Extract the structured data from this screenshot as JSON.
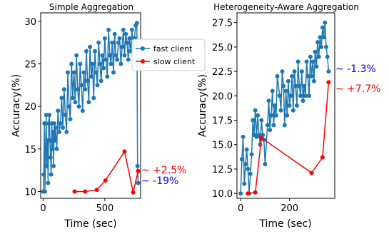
{
  "chart_data": [
    {
      "type": "line",
      "title": "Simple Aggregation",
      "xlabel": "Time (sec)",
      "ylabel": "Accuracy(%)",
      "xlim": [
        -20,
        790
      ],
      "ylim": [
        9.2,
        31.0
      ],
      "xticks": [
        0,
        500
      ],
      "yticks": [
        10,
        15,
        20,
        25,
        30
      ],
      "legend": {
        "placement": "right",
        "entries": [
          "fast client",
          "slow client"
        ]
      },
      "series": [
        {
          "name": "fast client",
          "color": "#1f77b4",
          "x": [
            0,
            5,
            10,
            15,
            20,
            25,
            30,
            35,
            40,
            45,
            50,
            55,
            60,
            65,
            70,
            75,
            80,
            85,
            90,
            95,
            100,
            110,
            120,
            130,
            140,
            150,
            160,
            170,
            180,
            190,
            200,
            210,
            220,
            230,
            240,
            250,
            260,
            270,
            280,
            290,
            300,
            310,
            320,
            330,
            340,
            350,
            360,
            370,
            380,
            390,
            400,
            410,
            420,
            430,
            440,
            450,
            460,
            470,
            480,
            490,
            500,
            510,
            520,
            530,
            540,
            550,
            560,
            570,
            580,
            590,
            600,
            610,
            620,
            630,
            640,
            650,
            660,
            670,
            680,
            690,
            700,
            710,
            720,
            730,
            740,
            750,
            760,
            765,
            770
          ],
          "y": [
            10.0,
            12.0,
            18.0,
            10.0,
            15.0,
            19.0,
            13.0,
            16.0,
            11.0,
            18.0,
            19.0,
            16.0,
            14.0,
            12.0,
            18.0,
            15.0,
            17.0,
            13.0,
            18.0,
            16.0,
            17.5,
            15.0,
            19.5,
            17.0,
            18.0,
            21.0,
            17.5,
            22.0,
            19.0,
            17.0,
            24.0,
            20.0,
            18.5,
            25.0,
            21.0,
            24.0,
            20.5,
            26.0,
            22.0,
            20.0,
            25.0,
            22.5,
            19.5,
            24.0,
            22.0,
            26.5,
            23.0,
            20.5,
            27.0,
            23.5,
            25.0,
            21.0,
            26.5,
            24.0,
            22.5,
            27.5,
            25.0,
            23.0,
            26.0,
            24.5,
            28.0,
            25.5,
            23.5,
            29.0,
            26.0,
            25.0,
            27.5,
            24.0,
            28.5,
            26.0,
            25.5,
            27.5,
            28.0,
            25.0,
            27.0,
            29.0,
            26.0,
            28.5,
            27.5,
            25.5,
            28.0,
            26.5,
            29.0,
            27.0,
            28.0,
            29.5,
            29.8,
            13.0,
            11.0
          ]
        },
        {
          "name": "slow client",
          "color": "#ff0000",
          "x": [
            255,
            340,
            435,
            505,
            660,
            730,
            770
          ],
          "y": [
            10.0,
            10.0,
            10.2,
            11.3,
            14.7,
            9.9,
            12.4
          ]
        }
      ],
      "annotations": [
        {
          "text": "~ +2.5%",
          "color": "#ff0000"
        },
        {
          "text": "~ -19%",
          "color": "#0000ff"
        }
      ]
    },
    {
      "type": "line",
      "title": "Heterogeneity-Aware Aggregation",
      "xlabel": "Time (sec)",
      "ylabel": "Accuracy(%)",
      "xlim": [
        -15,
        385
      ],
      "ylim": [
        9.5,
        28.5
      ],
      "xticks": [
        0,
        200
      ],
      "yticks": [
        10.0,
        12.5,
        15.0,
        17.5,
        20.0,
        22.5,
        25.0,
        27.5
      ],
      "series": [
        {
          "name": "fast client",
          "color": "#1f77b4",
          "x": [
            0,
            5,
            10,
            15,
            20,
            25,
            30,
            35,
            40,
            45,
            50,
            55,
            60,
            65,
            70,
            75,
            80,
            85,
            90,
            95,
            100,
            110,
            115,
            120,
            125,
            130,
            135,
            140,
            145,
            150,
            160,
            165,
            170,
            175,
            180,
            185,
            190,
            195,
            200,
            205,
            210,
            215,
            220,
            225,
            230,
            235,
            240,
            245,
            250,
            255,
            260,
            265,
            270,
            275,
            280,
            285,
            290,
            295,
            300,
            305,
            310,
            315,
            320,
            325,
            330,
            335,
            340,
            345,
            350,
            355,
            360
          ],
          "y": [
            10.0,
            13.5,
            15.8,
            11.0,
            13.0,
            14.5,
            12.5,
            10.0,
            12.0,
            14.0,
            17.5,
            16.0,
            18.5,
            15.8,
            18.0,
            16.0,
            15.0,
            17.5,
            16.0,
            15.5,
            13.0,
            17.0,
            19.5,
            16.5,
            18.0,
            20.5,
            17.0,
            19.0,
            18.0,
            22.0,
            20.0,
            18.5,
            22.5,
            21.0,
            17.0,
            20.5,
            18.0,
            21.5,
            19.0,
            20.0,
            22.0,
            18.5,
            22.5,
            21.0,
            19.0,
            23.5,
            21.0,
            20.0,
            22.5,
            19.5,
            21.0,
            20.0,
            23.5,
            22.0,
            20.0,
            24.0,
            22.0,
            23.5,
            21.5,
            24.5,
            23.0,
            25.5,
            24.0,
            26.0,
            25.0,
            27.0,
            26.0,
            27.5,
            25.0,
            24.0,
            22.5
          ]
        },
        {
          "name": "slow client",
          "color": "#ff0000",
          "x": [
            30,
            60,
            85,
            290,
            335,
            360
          ],
          "y": [
            10.0,
            10.1,
            15.7,
            12.1,
            13.7,
            21.4
          ]
        }
      ],
      "annotations": [
        {
          "text": "~ -1.3%",
          "color": "#0000ff"
        },
        {
          "text": "~ +7.7%",
          "color": "#ff0000"
        }
      ]
    }
  ]
}
